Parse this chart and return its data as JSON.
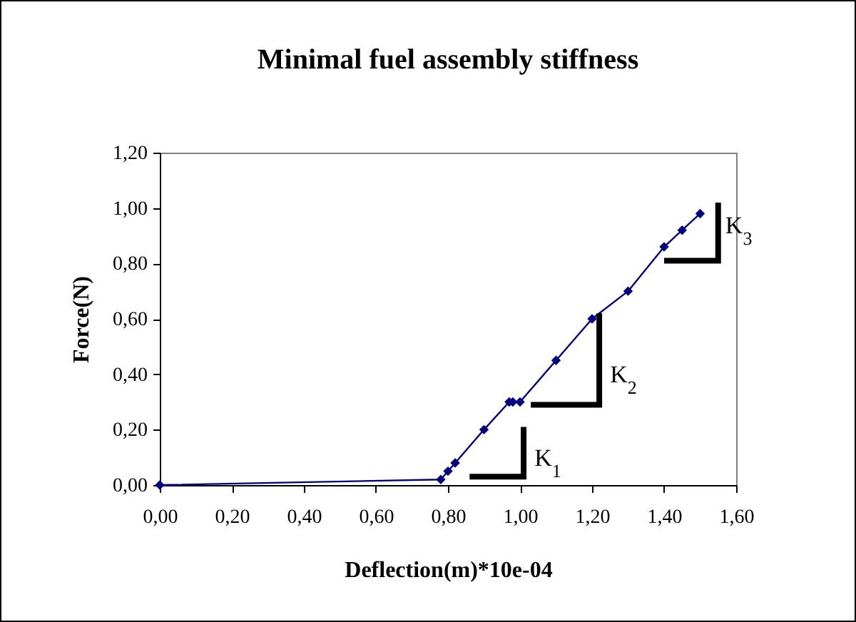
{
  "chart_data": {
    "type": "line",
    "title": "Minimal fuel assembly stiffness",
    "xlabel": "Deflection(m)*10e-04",
    "ylabel": "Force(N)",
    "x": [
      0,
      0.78,
      0.8,
      0.82,
      0.9,
      0.97,
      0.98,
      1.0,
      1.1,
      1.2,
      1.3,
      1.4,
      1.45,
      1.5
    ],
    "series": [
      {
        "color": "#000080",
        "values": [
          0,
          0.02,
          0.05,
          0.08,
          0.2,
          0.3,
          0.3,
          0.3,
          0.45,
          0.6,
          0.7,
          0.86,
          0.92,
          0.98
        ]
      }
    ],
    "xlim": [
      0,
      1.6
    ],
    "ylim": [
      0,
      1.2
    ],
    "xticks": [
      {
        "value": 0,
        "label": "0,00"
      },
      {
        "value": 0.2,
        "label": "0,20"
      },
      {
        "value": 0.4,
        "label": "0,40"
      },
      {
        "value": 0.6,
        "label": "0,60"
      },
      {
        "value": 0.8,
        "label": "0,80"
      },
      {
        "value": 1.0,
        "label": "1,00"
      },
      {
        "value": 1.2,
        "label": "1,20"
      },
      {
        "value": 1.4,
        "label": "1,40"
      },
      {
        "value": 1.6,
        "label": "1,60"
      }
    ],
    "yticks": [
      {
        "value": 0,
        "label": "0,00"
      },
      {
        "value": 0.2,
        "label": "0,20"
      },
      {
        "value": 0.4,
        "label": "0,40"
      },
      {
        "value": 0.6,
        "label": "0,60"
      },
      {
        "value": 0.8,
        "label": "0,80"
      },
      {
        "value": 1.0,
        "label": "1,00"
      },
      {
        "value": 1.2,
        "label": "1,20"
      }
    ],
    "annotations": [
      "K$_{1}$",
      "K$_{2}$",
      "K$_{3}$"
    ],
    "marker": "diamond",
    "line_style": "solid",
    "grid": false
  }
}
